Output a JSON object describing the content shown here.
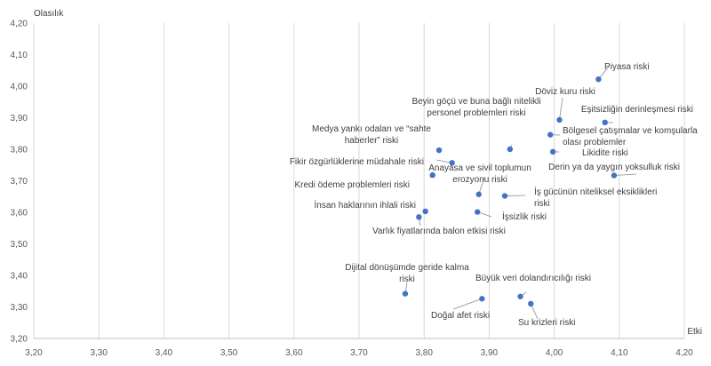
{
  "chart_data": {
    "type": "scatter",
    "title": "",
    "xlabel": "Etki",
    "ylabel": "Olasılık",
    "xlim": [
      3.2,
      4.2
    ],
    "ylim": [
      3.2,
      4.2
    ],
    "x_ticks": [
      "3,20",
      "3,30",
      "3,40",
      "3,50",
      "3,60",
      "3,70",
      "3,80",
      "3,90",
      "4,00",
      "4,10",
      "4,20"
    ],
    "y_ticks": [
      "3,20",
      "3,30",
      "3,40",
      "3,50",
      "3,60",
      "3,70",
      "3,80",
      "3,90",
      "4,00",
      "4,10",
      "4,20"
    ],
    "grid": "vertical",
    "marker_color": "#4472c4",
    "points": [
      {
        "label": [
          "Piyasa riski"
        ],
        "x": 4.068,
        "y": 4.022
      },
      {
        "label": [
          "Döviz kuru riski"
        ],
        "x": 4.008,
        "y": 3.893
      },
      {
        "label": [
          "Eşitsizliğin derinleşmesi riski"
        ],
        "x": 4.078,
        "y": 3.885
      },
      {
        "label": [
          "Beyin göçü ve buna bağlı nitelikli",
          "personel problemleri riski"
        ],
        "x": 3.932,
        "y": 3.8
      },
      {
        "label": [
          "Bölgesel çatışmalar ve komşularla",
          "olası problemler"
        ],
        "x": 3.994,
        "y": 3.846
      },
      {
        "label": [
          "Medya yankı odaları ve “sahte",
          "haberler” riski"
        ],
        "x": 3.823,
        "y": 3.797
      },
      {
        "label": [
          "Likidite riski"
        ],
        "x": 3.998,
        "y": 3.792
      },
      {
        "label": [
          "Fikir özgürlüklerine müdahale riski"
        ],
        "x": 3.843,
        "y": 3.757
      },
      {
        "label": [
          "Anayasa ve sivil toplumun",
          "erozyonu riski"
        ],
        "x": 3.884,
        "y": 3.657
      },
      {
        "label": [
          "Derin ya da yaygın yoksulluk riski"
        ],
        "x": 4.092,
        "y": 3.717
      },
      {
        "label": [
          "Kredi ödeme problemleri riski"
        ],
        "x": 3.813,
        "y": 3.718
      },
      {
        "label": [
          "İş gücünün niteliksel eksiklikleri",
          "riski"
        ],
        "x": 3.924,
        "y": 3.652
      },
      {
        "label": [
          "İnsan haklarının ihlali riski"
        ],
        "x": 3.802,
        "y": 3.603
      },
      {
        "label": [
          "İşsizlik riski"
        ],
        "x": 3.882,
        "y": 3.601
      },
      {
        "label": [
          "Varlık fiyatlarında balon etkisi riski"
        ],
        "x": 3.792,
        "y": 3.585
      },
      {
        "label": [
          "Dijital dönüşümde geride kalma",
          "riski"
        ],
        "x": 3.771,
        "y": 3.342
      },
      {
        "label": [
          "Büyük veri dolandırıcılığı riski"
        ],
        "x": 3.948,
        "y": 3.333
      },
      {
        "label": [
          "Doğal afet riski"
        ],
        "x": 3.889,
        "y": 3.326
      },
      {
        "label": [
          "Su krizleri riski"
        ],
        "x": 3.964,
        "y": 3.31
      }
    ]
  }
}
